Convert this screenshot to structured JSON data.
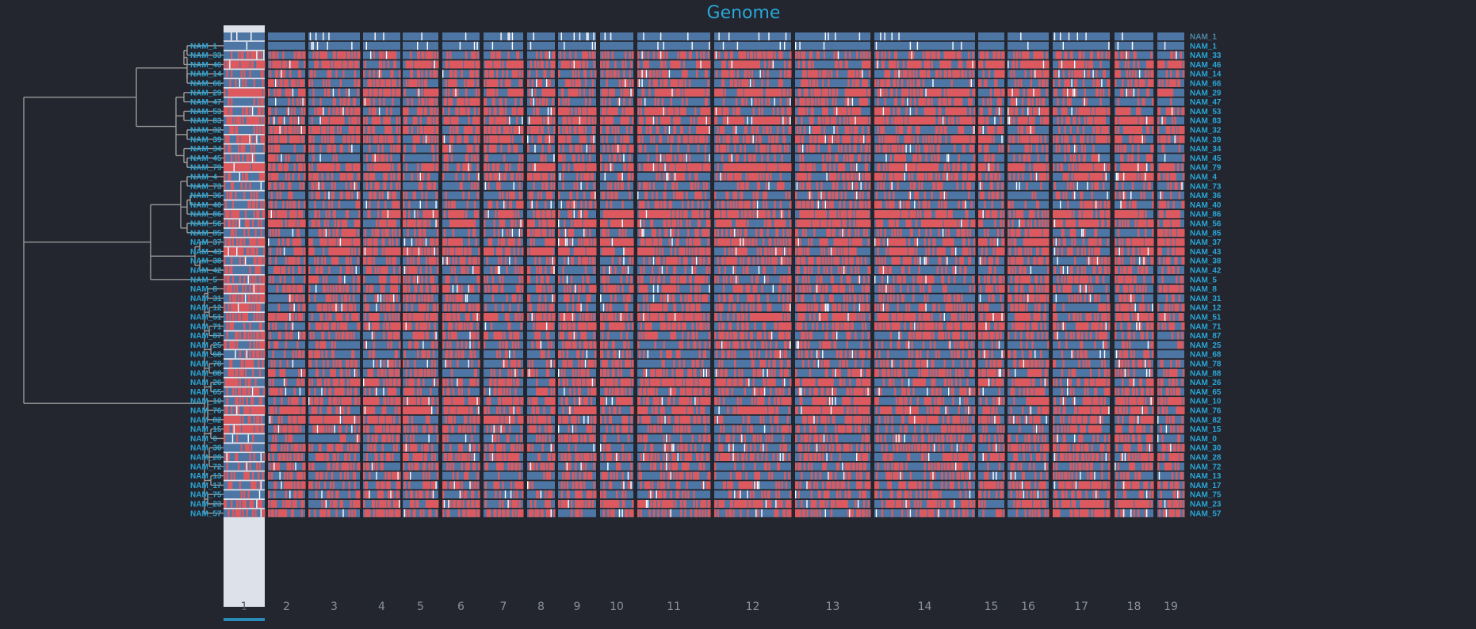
{
  "colors": {
    "background": "#23262e",
    "title": "#2aa7d8",
    "label": "#2aa7d8",
    "label_dim": "#4f87a7",
    "track_blue": "#4e76a5",
    "track_red": "#dc5a5f",
    "missing_white": "#ffffff",
    "dendrogram": "#9a9a9a",
    "selected_chrom_bg": "#dde2ea",
    "selected_chrom_bar": "#2a8bb8",
    "axis_label": "#8a8f99"
  },
  "chart_data": {
    "type": "heatmap",
    "title": "Genome",
    "x_categories": [
      "1",
      "2",
      "3",
      "4",
      "5",
      "6",
      "7",
      "8",
      "9",
      "10",
      "11",
      "12",
      "13",
      "14",
      "15",
      "16",
      "17",
      "18",
      "19"
    ],
    "selected_category": "1",
    "rows": [
      "NAM_1",
      "NAM_1",
      "NAM_33",
      "NAM_46",
      "NAM_14",
      "NAM_66",
      "NAM_29",
      "NAM_47",
      "NAM_53",
      "NAM_83",
      "NAM_32",
      "NAM_39",
      "NAM_34",
      "NAM_45",
      "NAM_79",
      "NAM_4",
      "NAM_73",
      "NAM_36",
      "NAM_40",
      "NAM_86",
      "NAM_56",
      "NAM_85",
      "NAM_37",
      "NAM_43",
      "NAM_38",
      "NAM_42",
      "NAM_5",
      "NAM_8",
      "NAM_31",
      "NAM_12",
      "NAM_51",
      "NAM_71",
      "NAM_87",
      "NAM_25",
      "NAM_68",
      "NAM_78",
      "NAM_88",
      "NAM_26",
      "NAM_65",
      "NAM_10",
      "NAM_76",
      "NAM_82",
      "NAM_15",
      "NAM_0",
      "NAM_30",
      "NAM_28",
      "NAM_72",
      "NAM_13",
      "NAM_17",
      "NAM_75",
      "NAM_23",
      "NAM_57"
    ],
    "left_labels_start_index": 1,
    "reference_row_index": 0,
    "cell_states": [
      "same-as-reference",
      "different-from-reference",
      "missing"
    ],
    "legend": "none"
  }
}
